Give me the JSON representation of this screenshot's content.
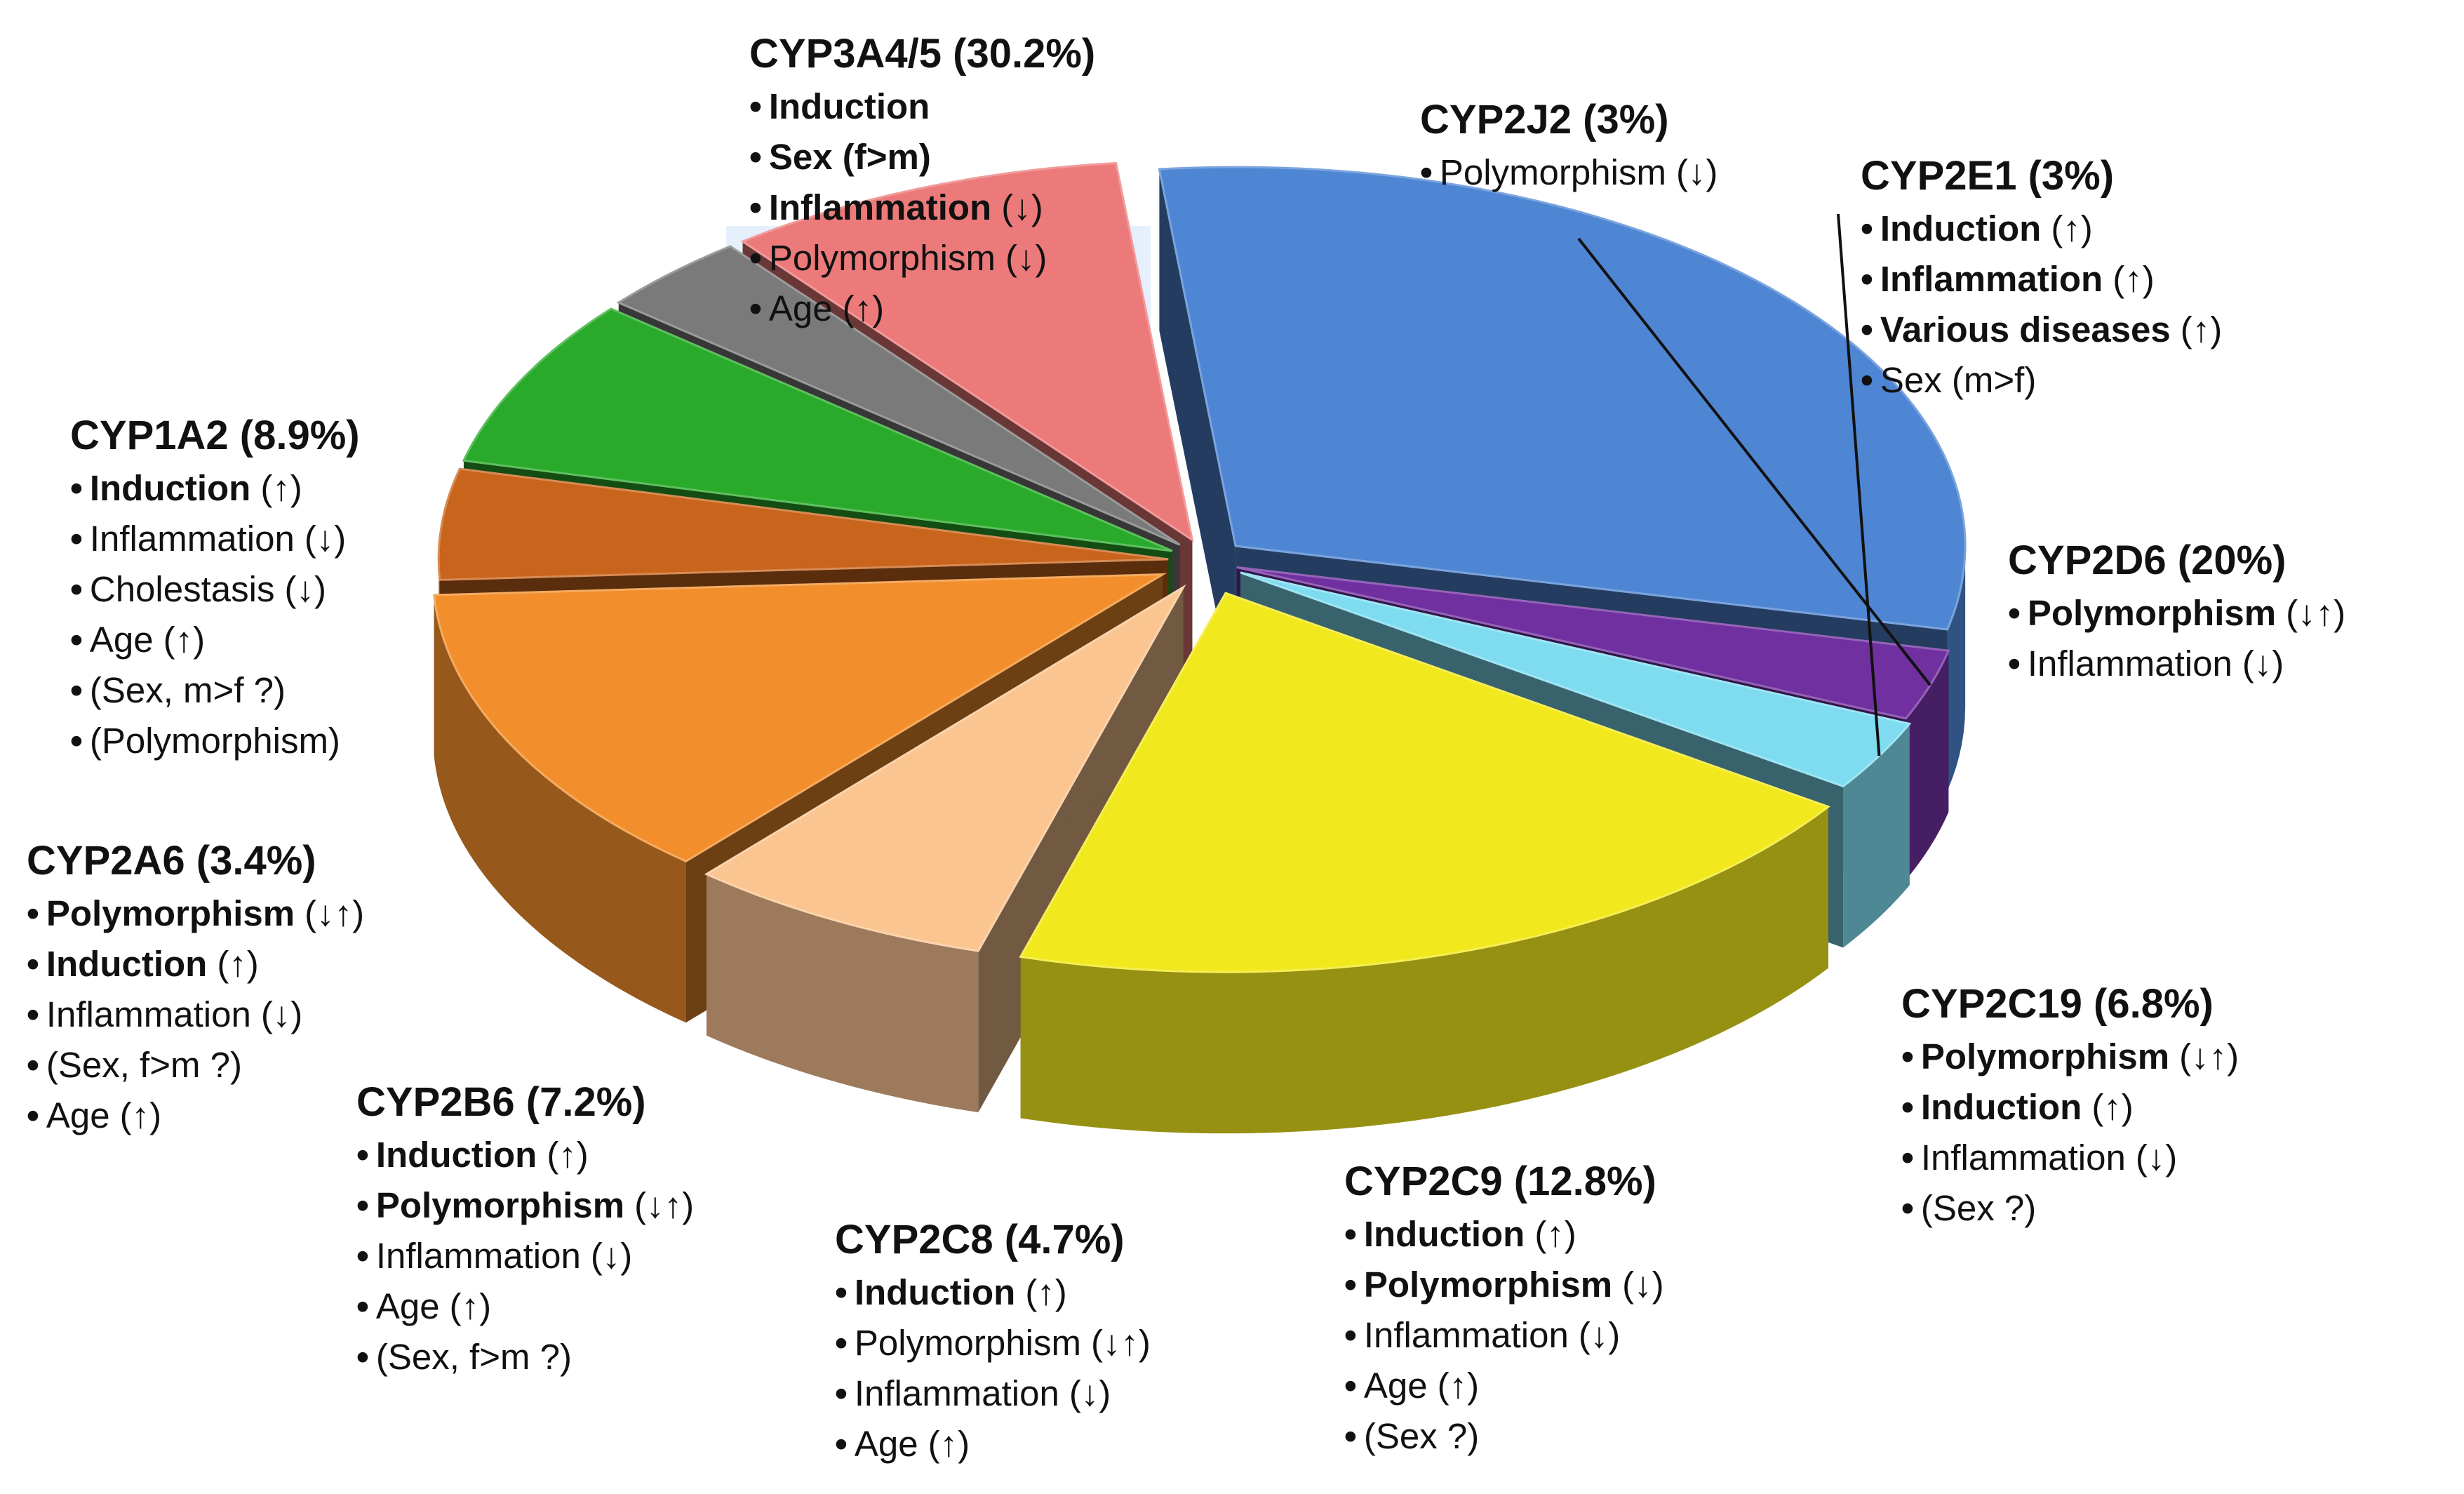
{
  "chart_data": {
    "type": "pie",
    "title": "",
    "slices": [
      {
        "name": "CYP3A4/5",
        "label": "CYP3A4/5 (30.2%)",
        "value": 30.2,
        "color": "#4f86d3",
        "factors": [
          {
            "text": "Induction",
            "arrow": "",
            "bold": true
          },
          {
            "text": "Sex (f>m)",
            "arrow": "",
            "bold": true
          },
          {
            "text": "Inflammation",
            "arrow": "(↓)",
            "bold": true
          },
          {
            "text": "Polymorphism",
            "arrow": "(↓)",
            "bold": false
          },
          {
            "text": "Age",
            "arrow": "(↑)",
            "bold": false
          }
        ]
      },
      {
        "name": "CYP2J2",
        "label": "CYP2J2 (3%)",
        "value": 3,
        "color": "#7030a0",
        "factors": [
          {
            "text": "Polymorphism",
            "arrow": "(↓)",
            "bold": false
          }
        ]
      },
      {
        "name": "CYP2E1",
        "label": "CYP2E1 (3%)",
        "value": 3,
        "color": "#7fdcf0",
        "factors": [
          {
            "text": "Induction",
            "arrow": "(↑)",
            "bold": true
          },
          {
            "text": "Inflammation",
            "arrow": "(↑)",
            "bold": true
          },
          {
            "text": "Various diseases",
            "arrow": "(↑)",
            "bold": true
          },
          {
            "text": "Sex (m>f)",
            "arrow": "",
            "bold": false
          }
        ]
      },
      {
        "name": "CYP2D6",
        "label": "CYP2D6 (20%)",
        "value": 20,
        "color": "#f2e81e",
        "factors": [
          {
            "text": "Polymorphism",
            "arrow": "(↓↑)",
            "bold": true
          },
          {
            "text": "Inflammation",
            "arrow": "(↓)",
            "bold": false
          }
        ]
      },
      {
        "name": "CYP2C19",
        "label": "CYP2C19 (6.8%)",
        "value": 6.8,
        "color": "#fbc592",
        "factors": [
          {
            "text": "Polymorphism",
            "arrow": "(↓↑)",
            "bold": true
          },
          {
            "text": "Induction",
            "arrow": "(↑)",
            "bold": true
          },
          {
            "text": "Inflammation",
            "arrow": "(↓)",
            "bold": false
          },
          {
            "text": "(Sex ?)",
            "arrow": "",
            "bold": false
          }
        ]
      },
      {
        "name": "CYP2C9",
        "label": "CYP2C9 (12.8%)",
        "value": 12.8,
        "color": "#f28f2c",
        "factors": [
          {
            "text": "Induction",
            "arrow": "(↑)",
            "bold": true
          },
          {
            "text": "Polymorphism",
            "arrow": "(↓)",
            "bold": true
          },
          {
            "text": "Inflammation",
            "arrow": "(↓)",
            "bold": false
          },
          {
            "text": "Age",
            "arrow": "(↑)",
            "bold": false
          },
          {
            "text": "(Sex ?)",
            "arrow": "",
            "bold": false
          }
        ]
      },
      {
        "name": "CYP2C8",
        "label": "CYP2C8 (4.7%)",
        "value": 4.7,
        "color": "#c9641c",
        "factors": [
          {
            "text": "Induction",
            "arrow": "(↑)",
            "bold": true
          },
          {
            "text": "Polymorphism",
            "arrow": "(↓↑)",
            "bold": false
          },
          {
            "text": "Inflammation",
            "arrow": "(↓)",
            "bold": false
          },
          {
            "text": "Age",
            "arrow": "(↑)",
            "bold": false
          }
        ]
      },
      {
        "name": "CYP2B6",
        "label": "CYP2B6 (7.2%)",
        "value": 7.2,
        "color": "#2aaa2a",
        "factors": [
          {
            "text": "Induction",
            "arrow": "(↑)",
            "bold": true
          },
          {
            "text": "Polymorphism",
            "arrow": "(↓↑)",
            "bold": true
          },
          {
            "text": "Inflammation",
            "arrow": "(↓)",
            "bold": false
          },
          {
            "text": "Age",
            "arrow": "(↑)",
            "bold": false
          },
          {
            "text": "(Sex, f>m ?)",
            "arrow": "",
            "bold": false
          }
        ]
      },
      {
        "name": "CYP2A6",
        "label": "CYP2A6 (3.4%)",
        "value": 3.4,
        "color": "#7a7a7a",
        "factors": [
          {
            "text": "Polymorphism",
            "arrow": "(↓↑)",
            "bold": true
          },
          {
            "text": "Induction",
            "arrow": "(↑)",
            "bold": true
          },
          {
            "text": "Inflammation",
            "arrow": "(↓)",
            "bold": false
          },
          {
            "text": "(Sex, f>m ?)",
            "arrow": "",
            "bold": false
          },
          {
            "text": "Age",
            "arrow": "(↑)",
            "bold": false
          }
        ]
      },
      {
        "name": "CYP1A2",
        "label": "CYP1A2 (8.9%)",
        "value": 8.9,
        "color": "#ec7a7a",
        "factors": [
          {
            "text": "Induction",
            "arrow": "(↑)",
            "bold": true
          },
          {
            "text": "Inflammation",
            "arrow": "(↓)",
            "bold": false
          },
          {
            "text": "Cholestasis",
            "arrow": "(↓)",
            "bold": false
          },
          {
            "text": "Age",
            "arrow": "(↑)",
            "bold": false
          },
          {
            "text": "(Sex, m>f ?)",
            "arrow": "",
            "bold": false
          },
          {
            "text": "(Polymorphism)",
            "arrow": "",
            "bold": false
          }
        ]
      }
    ]
  }
}
